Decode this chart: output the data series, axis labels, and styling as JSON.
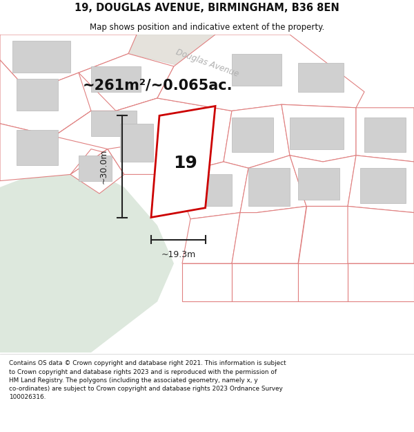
{
  "title": "19, DOUGLAS AVENUE, BIRMINGHAM, B36 8EN",
  "subtitle": "Map shows position and indicative extent of the property.",
  "area_text": "~261m²/~0.065ac.",
  "label_number": "19",
  "dim_width": "~19.3m",
  "dim_height": "~30.0m",
  "street_label": "Douglas Avenue",
  "copyright_text": "Contains OS data © Crown copyright and database right 2021. This information is subject to Crown copyright and database rights 2023 and is reproduced with the permission of HM Land Registry. The polygons (including the associated geometry, namely x, y co-ordinates) are subject to Crown copyright and database rights 2023 Ordnance Survey 100026316.",
  "map_bg": "#f2f2ee",
  "plot_fill": "#ffffff",
  "plot_edge": "#cc0000",
  "building_fill": "#d0d0d0",
  "building_edge": "#b8b8b8",
  "pink_line_color": "#e08080",
  "green_area": "#dde8dd",
  "road_fill": "#e5e2dc",
  "dim_line_color": "#222222",
  "text_color": "#111111",
  "street_text_color": "#b0b0b0"
}
